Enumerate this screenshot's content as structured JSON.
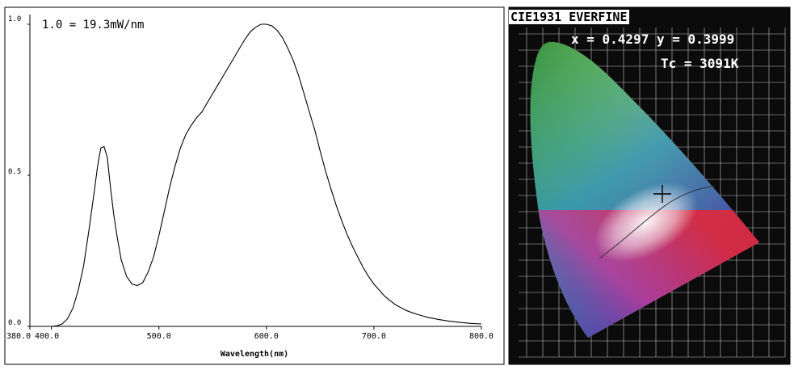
{
  "chart_data": [
    {
      "type": "line",
      "annotation": "1.0 = 19.3mW/nm",
      "xlabel": "Wavelength(nm)",
      "ylabel": "",
      "xlim": [
        380,
        800
      ],
      "ylim": [
        0,
        1
      ],
      "x_tick_labels": [
        "380.0",
        "400.0",
        "500.0",
        "600.0",
        "700.0",
        "800.0"
      ],
      "x_ticks": [
        380,
        400,
        500,
        600,
        700,
        800
      ],
      "y_tick_labels": [
        "0.0",
        "0.5",
        "1.0"
      ],
      "y_ticks": [
        0,
        0.5,
        1.0
      ],
      "grid": false,
      "series": [
        {
          "x": [
            380,
            400,
            405,
            410,
            415,
            420,
            425,
            430,
            435,
            440,
            443,
            446,
            449,
            452,
            455,
            458,
            461,
            465,
            470,
            475,
            480,
            485,
            490,
            495,
            500,
            505,
            510,
            515,
            520,
            525,
            530,
            535,
            540,
            545,
            550,
            555,
            560,
            565,
            570,
            575,
            580,
            585,
            590,
            595,
            600,
            605,
            610,
            615,
            620,
            625,
            630,
            635,
            640,
            645,
            650,
            655,
            660,
            665,
            670,
            675,
            680,
            685,
            690,
            695,
            700,
            705,
            710,
            715,
            720,
            725,
            730,
            735,
            740,
            745,
            750,
            760,
            770,
            780,
            790,
            800
          ],
          "y": [
            0,
            0,
            0.002,
            0.008,
            0.025,
            0.06,
            0.12,
            0.2,
            0.32,
            0.45,
            0.53,
            0.59,
            0.595,
            0.56,
            0.46,
            0.37,
            0.3,
            0.22,
            0.165,
            0.14,
            0.135,
            0.145,
            0.18,
            0.23,
            0.3,
            0.38,
            0.46,
            0.53,
            0.59,
            0.635,
            0.665,
            0.69,
            0.71,
            0.74,
            0.77,
            0.8,
            0.83,
            0.86,
            0.89,
            0.92,
            0.95,
            0.975,
            0.99,
            1.0,
            1.0,
            0.995,
            0.98,
            0.955,
            0.92,
            0.88,
            0.83,
            0.77,
            0.71,
            0.65,
            0.58,
            0.515,
            0.455,
            0.4,
            0.35,
            0.305,
            0.265,
            0.23,
            0.195,
            0.165,
            0.14,
            0.12,
            0.1,
            0.085,
            0.072,
            0.062,
            0.053,
            0.046,
            0.04,
            0.035,
            0.03,
            0.023,
            0.017,
            0.013,
            0.01,
            0.008
          ]
        }
      ]
    },
    {
      "type": "scatter",
      "title": "CIE1931 EVERFINE",
      "readout_xy": "x = 0.4297 y = 0.3999",
      "readout_tc": "Tc = 3091K",
      "x": [
        0.4297
      ],
      "y": [
        0.3999
      ],
      "xlim": [
        0,
        0.8
      ],
      "ylim": [
        0,
        0.9
      ]
    }
  ],
  "colors": {
    "curve": "#000000",
    "axes": "#000000",
    "diagram_background": "#000000",
    "grid": "#ffffff",
    "readout_text": "#ffffff"
  }
}
